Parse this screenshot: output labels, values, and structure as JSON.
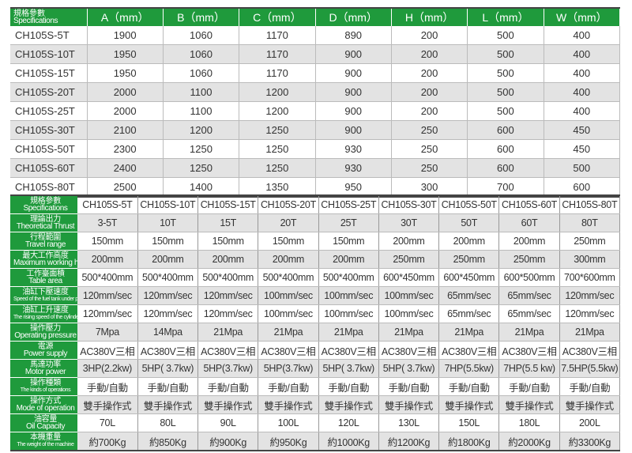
{
  "dimensions_table": {
    "header_zh": "規格參數",
    "header_en": "Specifications",
    "columns": [
      "A（mm）",
      "B（mm）",
      "C（mm）",
      "D（mm）",
      "H（mm）",
      "L（mm）",
      "W（mm）"
    ],
    "rows": [
      [
        "CH105S-5T",
        "1900",
        "1060",
        "1170",
        "890",
        "200",
        "500",
        "400"
      ],
      [
        "CH105S-10T",
        "1950",
        "1060",
        "1170",
        "900",
        "200",
        "500",
        "400"
      ],
      [
        "CH105S-15T",
        "1950",
        "1060",
        "1170",
        "900",
        "200",
        "500",
        "400"
      ],
      [
        "CH105S-20T",
        "2000",
        "1100",
        "1200",
        "900",
        "200",
        "500",
        "400"
      ],
      [
        "CH105S-25T",
        "2000",
        "1100",
        "1200",
        "900",
        "200",
        "500",
        "400"
      ],
      [
        "CH105S-30T",
        "2100",
        "1200",
        "1250",
        "900",
        "250",
        "600",
        "450"
      ],
      [
        "CH105S-50T",
        "2300",
        "1250",
        "1250",
        "930",
        "250",
        "600",
        "450"
      ],
      [
        "CH105S-60T",
        "2400",
        "1250",
        "1250",
        "930",
        "250",
        "600",
        "500"
      ],
      [
        "CH105S-80T",
        "2500",
        "1400",
        "1350",
        "950",
        "300",
        "700",
        "600"
      ]
    ]
  },
  "specs_table": {
    "rows": [
      {
        "zh": "規格參數",
        "en": "Specifications",
        "values": [
          "CH105S-5T",
          "CH105S-10T",
          "CH105S-15T",
          "CH105S-20T",
          "CH105S-25T",
          "CH105S-30T",
          "CH105S-50T",
          "CH105S-60T",
          "CH105S-80T"
        ]
      },
      {
        "zh": "理論出力",
        "en": "Theoretical Thrust",
        "values": [
          "3-5T",
          "10T",
          "15T",
          "20T",
          "25T",
          "30T",
          "50T",
          "60T",
          "80T"
        ]
      },
      {
        "zh": "行程範圍",
        "en": "Travel range",
        "values": [
          "150mm",
          "150mm",
          "150mm",
          "150mm",
          "150mm",
          "200mm",
          "200mm",
          "200mm",
          "250mm"
        ]
      },
      {
        "zh": "最大工作高度",
        "en": "Maximum working height",
        "values": [
          "200mm",
          "200mm",
          "200mm",
          "200mm",
          "200mm",
          "250mm",
          "250mm",
          "250mm",
          "300mm"
        ]
      },
      {
        "zh": "工作臺面積",
        "en": "Table area",
        "values": [
          "500*400mm",
          "500*400mm",
          "500*400mm",
          "500*400mm",
          "500*400mm",
          "600*450mm",
          "600*450mm",
          "600*500mm",
          "700*600mm"
        ]
      },
      {
        "zh": "油缸下壓速度",
        "en": "Speed of the fuel tank under pressure",
        "values": [
          "120mm/sec",
          "120mm/sec",
          "120mm/sec",
          "100mm/sec",
          "100mm/sec",
          "100mm/sec",
          "65mm/sec",
          "65mm/sec",
          "120mm/sec"
        ]
      },
      {
        "zh": "油缸上升速度",
        "en": "The rising speed of the cylinder",
        "values": [
          "120mm/sec",
          "120mm/sec",
          "120mm/sec",
          "100mm/sec",
          "100mm/sec",
          "100mm/sec",
          "65mm/sec",
          "65mm/sec",
          "120mm/sec"
        ]
      },
      {
        "zh": "操作壓力",
        "en": "Operating pressure",
        "values": [
          "7Mpa",
          "14Mpa",
          "21Mpa",
          "21Mpa",
          "21Mpa",
          "21Mpa",
          "21Mpa",
          "21Mpa",
          "21Mpa"
        ]
      },
      {
        "zh": "電源",
        "en": "Power supply",
        "values": [
          "AC380V三相",
          "AC380V三相",
          "AC380V三相",
          "AC380V三相",
          "AC380V三相",
          "AC380V三相",
          "AC380V三相",
          "AC380V三相",
          "AC380V三相"
        ]
      },
      {
        "zh": "馬達功率",
        "en": "Motor power",
        "values": [
          "3HP(2.2kw)",
          "5HP( 3.7kw)",
          "5HP(3.7kw)",
          "5HP(3.7kw)",
          "5HP( 3.7kw)",
          "5HP( 3.7kw)",
          "7HP(5.5kw)",
          "7HP(5.5 kw)",
          "7.5HP(5.5kw)"
        ]
      },
      {
        "zh": "操作種類",
        "en": "The kinds of operations",
        "values": [
          "手動/自動",
          "手動/自動",
          "手動/自動",
          "手動/自動",
          "手動/自動",
          "手動/自動",
          "手動/自動",
          "手動/自動",
          "手動/自動"
        ]
      },
      {
        "zh": "操作方式",
        "en": "Mode of operation",
        "values": [
          "雙手操作式",
          "雙手操作式",
          "雙手操作式",
          "雙手操作式",
          "雙手操作式",
          "雙手操作式",
          "雙手操作式",
          "雙手操作式",
          "雙手操作式"
        ]
      },
      {
        "zh": "油容量",
        "en": "Oil Capacity",
        "values": [
          "70L",
          "80L",
          "90L",
          "100L",
          "120L",
          "130L",
          "150L",
          "180L",
          "200L"
        ]
      },
      {
        "zh": "本機重量",
        "en": "The weight of the machine",
        "values": [
          "約700Kg",
          "約850Kg",
          "約900Kg",
          "約950Kg",
          "約1000Kg",
          "約1200Kg",
          "約1800Kg",
          "約2000Kg",
          "約3300Kg"
        ]
      }
    ]
  },
  "colors": {
    "header_green": "#1f9a3c",
    "row_gray": "#e3e3e3"
  }
}
